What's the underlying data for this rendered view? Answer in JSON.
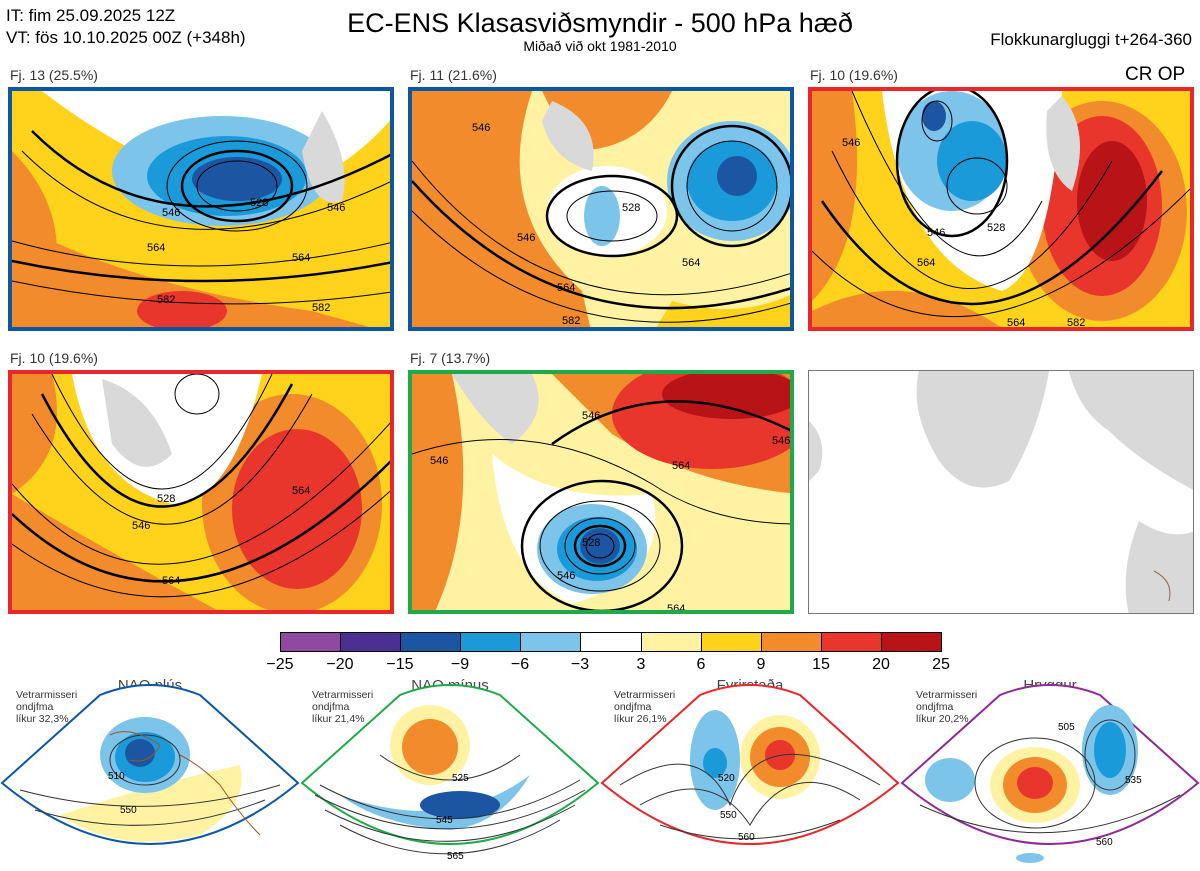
{
  "header": {
    "init_time": "IT: fim 25.09.2025 12Z",
    "valid_time": "VT: fös 10.10.2025 00Z  (+348h)",
    "title": "EC-ENS Klasasviðsmyndir - 500 hPa hæð",
    "subtitle": "Miðað við okt 1981-2010",
    "window": "Flokkunargluggi t+264-360"
  },
  "colors": {
    "blue_frame": "#0b57a4",
    "red_frame": "#e8262b",
    "green_frame": "#1faa4a",
    "purple_frame": "#8e2a96",
    "pink_dot": "#ee7bee"
  },
  "panels": [
    {
      "label": "Fj. 13 (25.5%)",
      "frame": "blue",
      "contours": [
        "546",
        "528",
        "546",
        "564",
        "564",
        "582",
        "582"
      ]
    },
    {
      "label": "Fj. 11 (21.6%)",
      "frame": "blue",
      "contours": [
        "546",
        "528",
        "546",
        "564",
        "564",
        "582"
      ]
    },
    {
      "label": "Fj. 10 (19.6%)",
      "frame": "red",
      "badge": "CR OP",
      "contours": [
        "546",
        "528",
        "546",
        "564",
        "564",
        "582"
      ]
    },
    {
      "label": "Fj. 10 (19.6%)",
      "frame": "red",
      "contours": [
        "528",
        "546",
        "564",
        "564"
      ]
    },
    {
      "label": "Fj. 7 (13.7%)",
      "frame": "green",
      "contours": [
        "546",
        "546",
        "528",
        "546",
        "564",
        "564",
        "546"
      ]
    }
  ],
  "colorbar": {
    "ticks": [
      "−25",
      "−20",
      "−15",
      "−9",
      "−6",
      "−3",
      "3",
      "6",
      "9",
      "15",
      "20",
      "25"
    ],
    "colors": [
      "#8e4a9e",
      "#4b2f93",
      "#1c56a3",
      "#1b9ad9",
      "#7cc4ea",
      "#ffffff",
      "#fff3a3",
      "#ffd31c",
      "#f28b2c",
      "#e8362d",
      "#b81418"
    ]
  },
  "regimes": [
    {
      "title": "NAO plús",
      "note": "Vetrarmisseri\nondjfma\nlíkur 32,3%",
      "contours": [
        "510",
        "550"
      ],
      "frame": "blue"
    },
    {
      "title": "NAO mínus",
      "note": "Vetrarmisseri\nondjfma\nlíkur 21,4%",
      "contours": [
        "525",
        "545",
        "565"
      ],
      "frame": "green"
    },
    {
      "title": "Fyrirstaða",
      "note": "Vetrarmisseri\nondjfma\nlíkur 26,1%",
      "contours": [
        "520",
        "550",
        "560"
      ],
      "frame": "red"
    },
    {
      "title": "Hryggur",
      "note": "Vetrarmisseri\nondjfma\nlíkur 20,2%",
      "contours": [
        "505",
        "535",
        "560"
      ],
      "frame": "purple"
    }
  ]
}
